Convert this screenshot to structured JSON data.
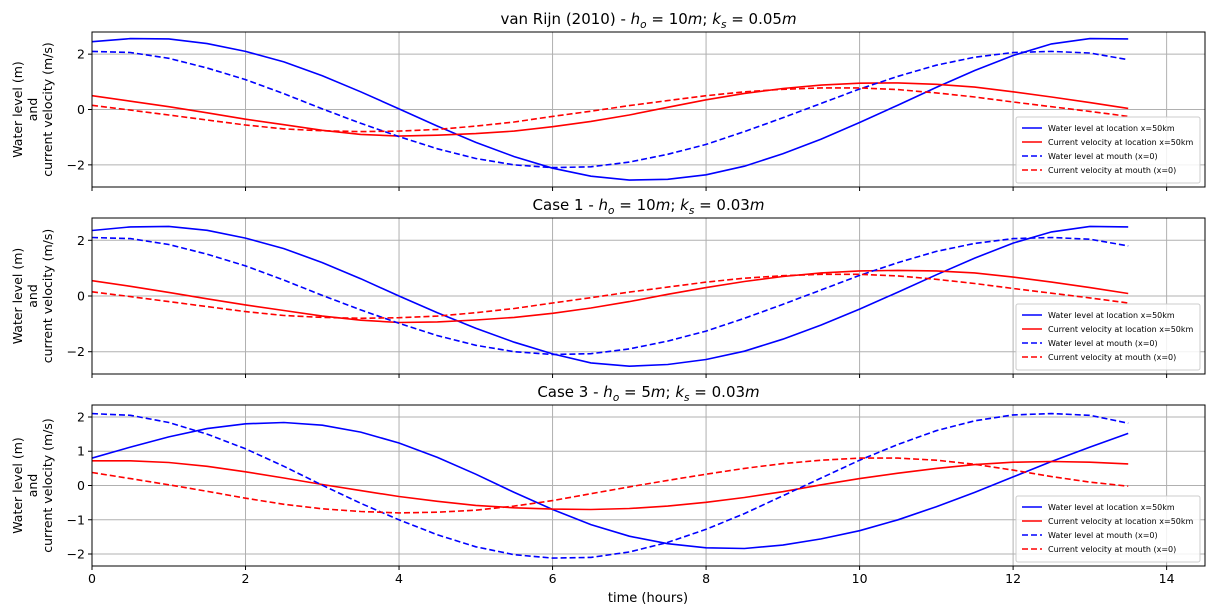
{
  "colors": {
    "water": "#0000ff",
    "current": "#ff0000",
    "grid": "#b0b0b0"
  },
  "xlabel": "time (hours)",
  "ylabel_lines": [
    "Water level (m)",
    "and",
    "current velocity (m/s)"
  ],
  "legend_labels": [
    "Water level at location x=50km",
    "Current velocity at location x=50km",
    "Water level at mouth (x=0)",
    "Current velocity at mouth (x=0)"
  ],
  "chart_data": [
    {
      "type": "line",
      "title_prefix": "van Rijn (2010) - ",
      "title_math": {
        "h_sub": "o",
        "h_val": "10",
        "k_sub": "s",
        "k_val": "0.05"
      },
      "xlim": [
        0,
        14.5
      ],
      "ylim": [
        -2.8,
        2.8
      ],
      "xticks": [
        0,
        2,
        4,
        6,
        8,
        10,
        12,
        14
      ],
      "yticks": [
        -2,
        0,
        2
      ],
      "grid": true,
      "legend_loc": "lower right",
      "series": [
        {
          "name": "Water level at location x=50km",
          "color": "#0000ff",
          "dash": false,
          "x": [
            0,
            0.5,
            1,
            1.5,
            2,
            2.5,
            3,
            3.5,
            4,
            4.5,
            5,
            5.5,
            6,
            6.5,
            7,
            7.5,
            8,
            8.5,
            9,
            9.5,
            10,
            10.5,
            11,
            11.5,
            12,
            12.5,
            13,
            13.5
          ],
          "y": [
            2.45,
            2.56,
            2.55,
            2.38,
            2.1,
            1.72,
            1.22,
            0.64,
            0.02,
            -0.6,
            -1.19,
            -1.7,
            -2.12,
            -2.41,
            -2.55,
            -2.52,
            -2.36,
            -2.05,
            -1.6,
            -1.07,
            -0.47,
            0.16,
            0.8,
            1.41,
            1.95,
            2.37,
            2.56,
            2.55
          ]
        },
        {
          "name": "Current velocity at location x=50km",
          "color": "#ff0000",
          "dash": false,
          "x": [
            0,
            0.5,
            1,
            1.5,
            2,
            2.5,
            3,
            3.5,
            4,
            4.5,
            5,
            5.5,
            6,
            6.5,
            7,
            7.5,
            8,
            8.5,
            9,
            9.5,
            10,
            10.5,
            11,
            11.5,
            12,
            12.5,
            13,
            13.5
          ],
          "y": [
            0.5,
            0.3,
            0.1,
            -0.12,
            -0.35,
            -0.55,
            -0.75,
            -0.9,
            -0.96,
            -0.93,
            -0.87,
            -0.78,
            -0.62,
            -0.43,
            -0.2,
            0.08,
            0.35,
            0.58,
            0.76,
            0.88,
            0.95,
            0.96,
            0.91,
            0.81,
            0.64,
            0.45,
            0.25,
            0.04
          ]
        },
        {
          "name": "Water level at mouth (x=0)",
          "color": "#0000ff",
          "dash": true,
          "x": [
            0,
            0.5,
            1,
            1.5,
            2,
            2.5,
            3,
            3.5,
            4,
            4.5,
            5,
            5.5,
            6,
            6.5,
            7,
            7.5,
            8,
            8.5,
            9,
            9.5,
            10,
            10.5,
            11,
            11.5,
            12,
            12.5,
            13,
            13.5
          ],
          "y": [
            2.1,
            2.06,
            1.85,
            1.5,
            1.08,
            0.57,
            0.02,
            -0.5,
            -0.98,
            -1.42,
            -1.77,
            -2.0,
            -2.1,
            -2.07,
            -1.9,
            -1.62,
            -1.26,
            -0.8,
            -0.3,
            0.22,
            0.74,
            1.2,
            1.6,
            1.89,
            2.06,
            2.1,
            2.04,
            1.8
          ]
        },
        {
          "name": "Current velocity at mouth (x=0)",
          "color": "#ff0000",
          "dash": true,
          "x": [
            0,
            0.5,
            1,
            1.5,
            2,
            2.5,
            3,
            3.5,
            4,
            4.5,
            5,
            5.5,
            6,
            6.5,
            7,
            7.5,
            8,
            8.5,
            9,
            9.5,
            10,
            10.5,
            11,
            11.5,
            12,
            12.5,
            13,
            13.5
          ],
          "y": [
            0.15,
            -0.02,
            -0.2,
            -0.38,
            -0.56,
            -0.7,
            -0.77,
            -0.8,
            -0.78,
            -0.72,
            -0.6,
            -0.45,
            -0.25,
            -0.06,
            0.14,
            0.32,
            0.5,
            0.64,
            0.73,
            0.78,
            0.78,
            0.72,
            0.6,
            0.45,
            0.27,
            0.1,
            -0.07,
            -0.25
          ]
        }
      ]
    },
    {
      "type": "line",
      "title_prefix": "Case 1 - ",
      "title_math": {
        "h_sub": "o",
        "h_val": "10",
        "k_sub": "s",
        "k_val": "0.03"
      },
      "xlim": [
        0,
        14.5
      ],
      "ylim": [
        -2.8,
        2.8
      ],
      "xticks": [
        0,
        2,
        4,
        6,
        8,
        10,
        12,
        14
      ],
      "yticks": [
        -2,
        0,
        2
      ],
      "grid": true,
      "legend_loc": "lower right",
      "series": [
        {
          "name": "Water level at location x=50km",
          "color": "#0000ff",
          "dash": false,
          "x": [
            0,
            0.5,
            1,
            1.5,
            2,
            2.5,
            3,
            3.5,
            4,
            4.5,
            5,
            5.5,
            6,
            6.5,
            7,
            7.5,
            8,
            8.5,
            9,
            9.5,
            10,
            10.5,
            11,
            11.5,
            12,
            12.5,
            13,
            13.5
          ],
          "y": [
            2.35,
            2.48,
            2.5,
            2.36,
            2.08,
            1.7,
            1.2,
            0.62,
            0.0,
            -0.6,
            -1.16,
            -1.66,
            -2.08,
            -2.4,
            -2.52,
            -2.46,
            -2.28,
            -1.98,
            -1.55,
            -1.04,
            -0.47,
            0.14,
            0.76,
            1.36,
            1.9,
            2.3,
            2.5,
            2.48
          ]
        },
        {
          "name": "Current velocity at location x=50km",
          "color": "#ff0000",
          "dash": false,
          "x": [
            0,
            0.5,
            1,
            1.5,
            2,
            2.5,
            3,
            3.5,
            4,
            4.5,
            5,
            5.5,
            6,
            6.5,
            7,
            7.5,
            8,
            8.5,
            9,
            9.5,
            10,
            10.5,
            11,
            11.5,
            12,
            12.5,
            13,
            13.5
          ],
          "y": [
            0.55,
            0.35,
            0.13,
            -0.1,
            -0.32,
            -0.52,
            -0.72,
            -0.87,
            -0.95,
            -0.93,
            -0.86,
            -0.77,
            -0.62,
            -0.43,
            -0.2,
            0.06,
            0.3,
            0.52,
            0.7,
            0.83,
            0.9,
            0.92,
            0.9,
            0.83,
            0.68,
            0.5,
            0.3,
            0.09
          ]
        },
        {
          "name": "Water level at mouth (x=0)",
          "color": "#0000ff",
          "dash": true,
          "x": [
            0,
            0.5,
            1,
            1.5,
            2,
            2.5,
            3,
            3.5,
            4,
            4.5,
            5,
            5.5,
            6,
            6.5,
            7,
            7.5,
            8,
            8.5,
            9,
            9.5,
            10,
            10.5,
            11,
            11.5,
            12,
            12.5,
            13,
            13.5
          ],
          "y": [
            2.1,
            2.06,
            1.85,
            1.5,
            1.08,
            0.57,
            0.02,
            -0.5,
            -0.98,
            -1.42,
            -1.77,
            -2.0,
            -2.1,
            -2.07,
            -1.9,
            -1.62,
            -1.26,
            -0.8,
            -0.3,
            0.22,
            0.74,
            1.2,
            1.6,
            1.89,
            2.06,
            2.1,
            2.04,
            1.8
          ]
        },
        {
          "name": "Current velocity at mouth (x=0)",
          "color": "#ff0000",
          "dash": true,
          "x": [
            0,
            0.5,
            1,
            1.5,
            2,
            2.5,
            3,
            3.5,
            4,
            4.5,
            5,
            5.5,
            6,
            6.5,
            7,
            7.5,
            8,
            8.5,
            9,
            9.5,
            10,
            10.5,
            11,
            11.5,
            12,
            12.5,
            13,
            13.5
          ],
          "y": [
            0.15,
            -0.02,
            -0.2,
            -0.38,
            -0.56,
            -0.7,
            -0.77,
            -0.8,
            -0.78,
            -0.72,
            -0.6,
            -0.45,
            -0.25,
            -0.06,
            0.14,
            0.32,
            0.5,
            0.64,
            0.73,
            0.78,
            0.78,
            0.72,
            0.6,
            0.45,
            0.27,
            0.1,
            -0.07,
            -0.25
          ]
        }
      ]
    },
    {
      "type": "line",
      "title_prefix": "Case 3 - ",
      "title_math": {
        "h_sub": "o",
        "h_val": "5",
        "k_sub": "s",
        "k_val": "0.03"
      },
      "xlim": [
        0,
        14.5
      ],
      "ylim": [
        -2.35,
        2.35
      ],
      "xticks": [
        0,
        2,
        4,
        6,
        8,
        10,
        12,
        14
      ],
      "yticks": [
        -2,
        -1,
        0,
        1,
        2
      ],
      "grid": true,
      "legend_loc": "lower right",
      "series": [
        {
          "name": "Water level at location x=50km",
          "color": "#0000ff",
          "dash": false,
          "x": [
            0,
            0.5,
            1,
            1.5,
            2,
            2.5,
            3,
            3.5,
            4,
            4.5,
            5,
            5.5,
            6,
            6.5,
            7,
            7.5,
            8,
            8.5,
            9,
            9.5,
            10,
            10.5,
            11,
            11.5,
            12,
            12.5,
            13,
            13.5
          ],
          "y": [
            0.8,
            1.12,
            1.42,
            1.66,
            1.8,
            1.84,
            1.76,
            1.56,
            1.24,
            0.82,
            0.33,
            -0.2,
            -0.7,
            -1.14,
            -1.48,
            -1.7,
            -1.82,
            -1.84,
            -1.74,
            -1.56,
            -1.32,
            -1.0,
            -0.62,
            -0.2,
            0.25,
            0.7,
            1.12,
            1.52
          ]
        },
        {
          "name": "Current velocity at location x=50km",
          "color": "#ff0000",
          "dash": false,
          "x": [
            0,
            0.5,
            1,
            1.5,
            2,
            2.5,
            3,
            3.5,
            4,
            4.5,
            5,
            5.5,
            6,
            6.5,
            7,
            7.5,
            8,
            8.5,
            9,
            9.5,
            10,
            10.5,
            11,
            11.5,
            12,
            12.5,
            13,
            13.5
          ],
          "y": [
            0.72,
            0.72,
            0.67,
            0.56,
            0.4,
            0.22,
            0.03,
            -0.15,
            -0.32,
            -0.46,
            -0.58,
            -0.65,
            -0.69,
            -0.7,
            -0.67,
            -0.6,
            -0.49,
            -0.35,
            -0.18,
            0.02,
            0.2,
            0.36,
            0.5,
            0.61,
            0.68,
            0.7,
            0.68,
            0.63
          ]
        },
        {
          "name": "Water level at mouth (x=0)",
          "color": "#0000ff",
          "dash": true,
          "x": [
            0,
            0.5,
            1,
            1.5,
            2,
            2.5,
            3,
            3.5,
            4,
            4.5,
            5,
            5.5,
            6,
            6.5,
            7,
            7.5,
            8,
            8.5,
            9,
            9.5,
            10,
            10.5,
            11,
            11.5,
            12,
            12.5,
            13,
            13.5
          ],
          "y": [
            2.1,
            2.05,
            1.84,
            1.5,
            1.07,
            0.56,
            0.01,
            -0.52,
            -1.0,
            -1.44,
            -1.79,
            -2.02,
            -2.12,
            -2.1,
            -1.94,
            -1.66,
            -1.28,
            -0.82,
            -0.3,
            0.22,
            0.74,
            1.2,
            1.6,
            1.89,
            2.06,
            2.1,
            2.05,
            1.82
          ]
        },
        {
          "name": "Current velocity at mouth (x=0)",
          "color": "#ff0000",
          "dash": true,
          "x": [
            0,
            0.5,
            1,
            1.5,
            2,
            2.5,
            3,
            3.5,
            4,
            4.5,
            5,
            5.5,
            6,
            6.5,
            7,
            7.5,
            8,
            8.5,
            9,
            9.5,
            10,
            10.5,
            11,
            11.5,
            12,
            12.5,
            13,
            13.5
          ],
          "y": [
            0.38,
            0.2,
            0.02,
            -0.17,
            -0.37,
            -0.55,
            -0.68,
            -0.76,
            -0.8,
            -0.78,
            -0.72,
            -0.6,
            -0.44,
            -0.24,
            -0.04,
            0.15,
            0.33,
            0.5,
            0.64,
            0.74,
            0.8,
            0.8,
            0.74,
            0.62,
            0.45,
            0.26,
            0.1,
            -0.02
          ]
        }
      ]
    }
  ]
}
